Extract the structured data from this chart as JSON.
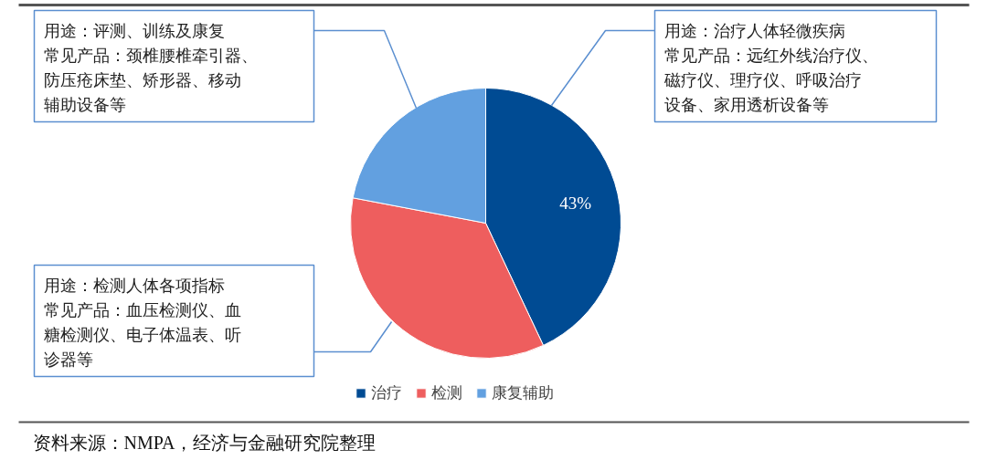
{
  "chart_data": {
    "type": "pie",
    "categories": [
      "治疗",
      "检测",
      "康复辅助"
    ],
    "values": [
      43,
      35,
      22
    ],
    "colors": [
      "#004b93",
      "#ee5e5e",
      "#62a0e0"
    ],
    "value_labels": [
      "43%",
      null,
      null
    ],
    "legend": "bottom",
    "annotations": [
      "用途：评测、训练及康复",
      "常见产品：颈椎腰椎牵引器、防压疮床垫、矫形器、移动辅助设备等",
      "用途：治疗人体轻微疾病",
      "常见产品：远红外线治疗仪、磁疗仪、理疗仪、呼吸治疗设备、家用透析设备等",
      "用途：检测人体各项指标",
      "常见产品：血压检测仪、血糖检测仪、电子体温表、听诊器等",
      "资料来源：NMPA，经济与金融研究院整理"
    ]
  }
}
